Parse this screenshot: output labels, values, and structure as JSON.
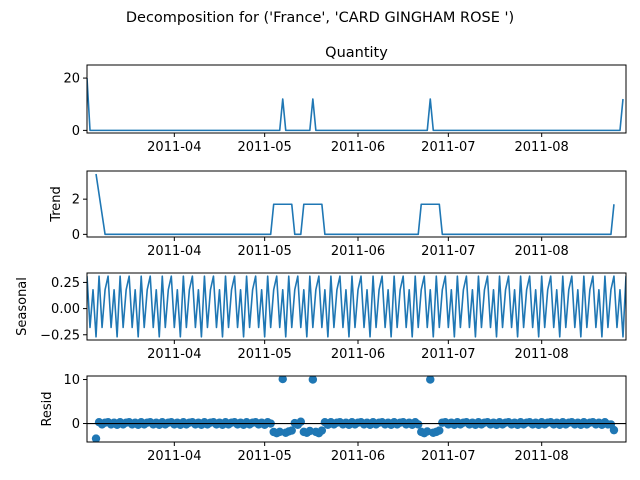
{
  "chart_data": {
    "type": "line",
    "suptitle": "Decomposition for ('France', 'CARD GINGHAM ROSE ')",
    "x_start": "2011-03-03",
    "n_days": 179,
    "xticks": [
      "2011-04",
      "2011-05",
      "2011-06",
      "2011-07",
      "2011-08"
    ],
    "panels": [
      {
        "key": "observed",
        "title": "Quantity",
        "ylabel": "",
        "kind": "line",
        "ylim": [
          -1,
          25
        ],
        "yticks": [
          "0",
          "20"
        ],
        "ytick_values": [
          0,
          20
        ],
        "points": [
          [
            "2011-03-03",
            20
          ],
          [
            "2011-03-04",
            0
          ],
          [
            "2011-05-06",
            0
          ],
          [
            "2011-05-07",
            12
          ],
          [
            "2011-05-08",
            0
          ],
          [
            "2011-05-16",
            0
          ],
          [
            "2011-05-17",
            12
          ],
          [
            "2011-05-18",
            0
          ],
          [
            "2011-06-24",
            0
          ],
          [
            "2011-06-25",
            12
          ],
          [
            "2011-06-26",
            0
          ],
          [
            "2011-08-27",
            0
          ],
          [
            "2011-08-28",
            12
          ]
        ]
      },
      {
        "key": "trend",
        "title": "",
        "ylabel": "Trend",
        "kind": "line",
        "ylim": [
          -0.15,
          3.6
        ],
        "yticks": [
          "0",
          "2"
        ],
        "ytick_values": [
          0,
          2
        ],
        "points": [
          [
            "2011-03-06",
            3.43
          ],
          [
            "2011-03-09",
            0
          ],
          [
            "2011-05-03",
            0
          ],
          [
            "2011-05-04",
            1.71
          ],
          [
            "2011-05-10",
            1.71
          ],
          [
            "2011-05-11",
            0
          ],
          [
            "2011-05-13",
            0
          ],
          [
            "2011-05-14",
            1.71
          ],
          [
            "2011-05-20",
            1.71
          ],
          [
            "2011-05-21",
            0
          ],
          [
            "2011-06-21",
            0
          ],
          [
            "2011-06-22",
            1.71
          ],
          [
            "2011-06-28",
            1.71
          ],
          [
            "2011-06-29",
            0
          ],
          [
            "2011-08-24",
            0
          ],
          [
            "2011-08-25",
            1.71
          ]
        ]
      },
      {
        "key": "seasonal",
        "title": "",
        "ylabel": "Seasonal",
        "kind": "periodic",
        "ylim": [
          -0.3,
          0.34
        ],
        "yticks": [
          "0.25",
          "0.00",
          "−0.25"
        ],
        "ytick_values": [
          0.25,
          0,
          -0.25
        ],
        "period_pattern": [
          0.31,
          -0.18,
          0.18,
          -0.27,
          0.31,
          -0.18,
          0.18
        ]
      },
      {
        "key": "resid",
        "title": "",
        "ylabel": "Resid",
        "kind": "scatter",
        "ylim": [
          -4.2,
          10.8
        ],
        "yticks": [
          "0",
          "10"
        ],
        "ytick_values": [
          0,
          10
        ],
        "baseline": 0,
        "first_date": "2011-03-06",
        "last_date": "2011-08-25",
        "base_pattern": [
          0.3,
          -0.2,
          0.2,
          -0.3,
          0.3,
          -0.2,
          0.2
        ],
        "overrides": [
          [
            "2011-03-06",
            -3.43
          ],
          [
            "2011-05-03",
            0
          ],
          [
            "2011-05-04",
            -1.92
          ],
          [
            "2011-05-05",
            -2.2
          ],
          [
            "2011-05-06",
            -1.9
          ],
          [
            "2011-05-07",
            10.1
          ],
          [
            "2011-05-08",
            -2.1
          ],
          [
            "2011-05-09",
            -1.8
          ],
          [
            "2011-05-10",
            -1.6
          ],
          [
            "2011-05-11",
            0.1
          ],
          [
            "2011-05-12",
            -0.3
          ],
          [
            "2011-05-13",
            0.4
          ],
          [
            "2011-05-14",
            -1.9
          ],
          [
            "2011-05-15",
            -2.1
          ],
          [
            "2011-05-16",
            -1.7
          ],
          [
            "2011-05-17",
            10.0
          ],
          [
            "2011-05-18",
            -1.9
          ],
          [
            "2011-05-19",
            -2.2
          ],
          [
            "2011-05-20",
            -1.6
          ],
          [
            "2011-05-21",
            0.3
          ],
          [
            "2011-06-22",
            -1.9
          ],
          [
            "2011-06-23",
            -2.2
          ],
          [
            "2011-06-24",
            -1.8
          ],
          [
            "2011-06-25",
            10.0
          ],
          [
            "2011-06-26",
            -2.1
          ],
          [
            "2011-06-27",
            -1.9
          ],
          [
            "2011-06-28",
            -1.6
          ],
          [
            "2011-08-24",
            -0.2
          ],
          [
            "2011-08-25",
            -1.5
          ]
        ]
      }
    ]
  },
  "colors": {
    "line": "#1f77b4",
    "axes": "#000000",
    "background": "#ffffff"
  }
}
